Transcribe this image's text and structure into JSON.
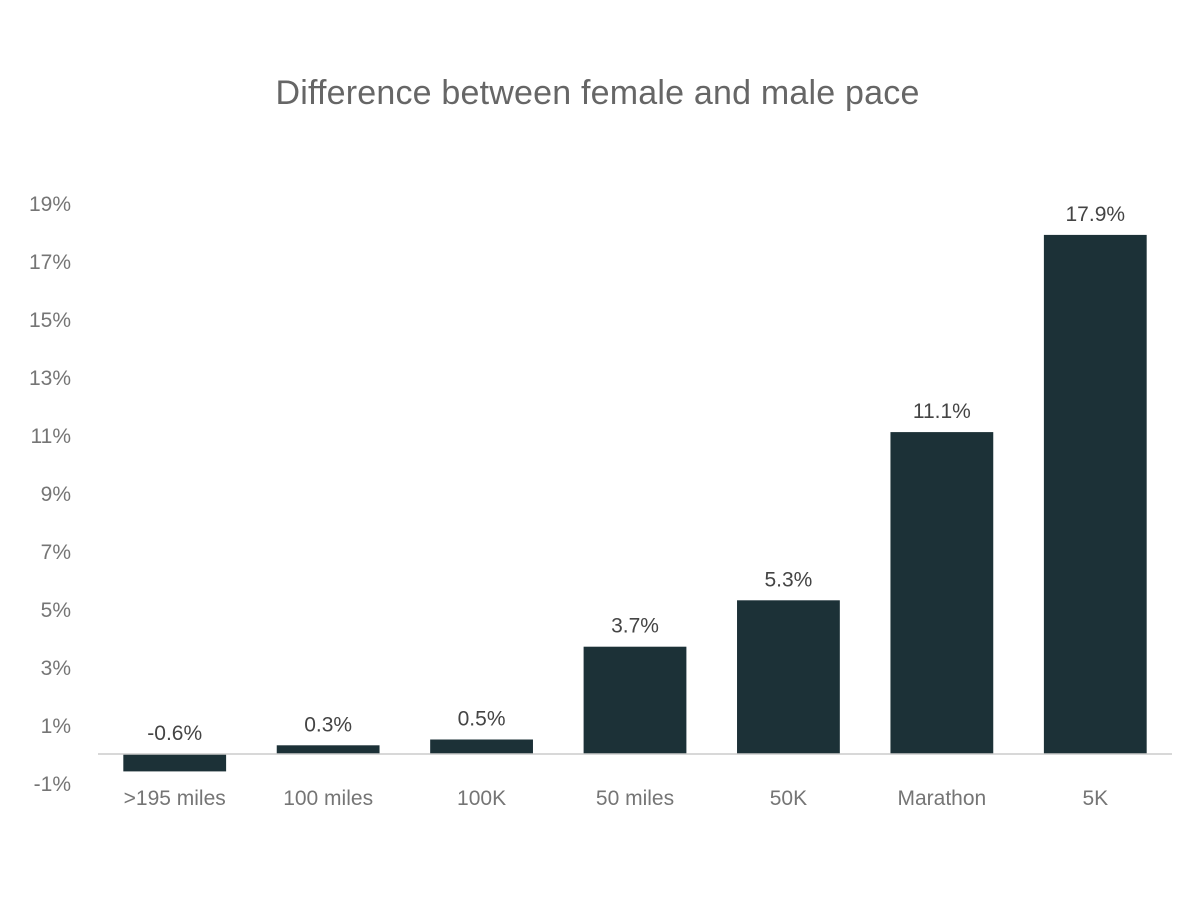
{
  "chart_data": {
    "type": "bar",
    "title": "Difference between female and male pace",
    "xlabel": "",
    "ylabel": "",
    "categories": [
      ">195 miles",
      "100 miles",
      "100K",
      "50 miles",
      "50K",
      "Marathon",
      "5K"
    ],
    "values": [
      -0.6,
      0.3,
      0.5,
      3.7,
      5.3,
      11.1,
      17.9
    ],
    "value_labels": [
      "-0.6%",
      "0.3%",
      "0.5%",
      "3.7%",
      "5.3%",
      "11.1%",
      "17.9%"
    ],
    "y_ticks": [
      -1,
      1,
      3,
      5,
      7,
      9,
      11,
      13,
      15,
      17,
      19
    ],
    "y_tick_labels": [
      "-1%",
      "1%",
      "3%",
      "5%",
      "7%",
      "9%",
      "11%",
      "13%",
      "15%",
      "17%",
      "19%"
    ],
    "ylim": [
      -1,
      19
    ],
    "grid": false,
    "legend": "none",
    "bar_color": "#1c3137",
    "axis_color": "#cccccc"
  }
}
